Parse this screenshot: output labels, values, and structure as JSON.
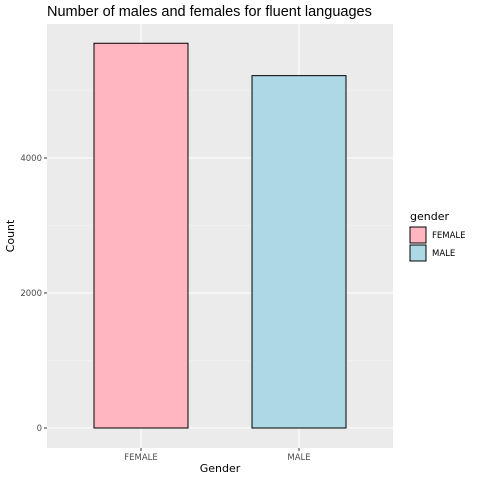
{
  "chart_data": {
    "type": "bar",
    "title": "Number of males and females for fluent languages",
    "xlabel": "Gender",
    "ylabel": "Count",
    "categories": [
      "FEMALE",
      "MALE"
    ],
    "values": [
      5700,
      5220
    ],
    "ylim": [
      0,
      6000
    ],
    "yticks": [
      0,
      2000,
      4000
    ],
    "grid": true,
    "legend": {
      "title": "gender",
      "placement": "right",
      "entries": [
        {
          "label": "FEMALE",
          "color": "#ffb6c1"
        },
        {
          "label": "MALE",
          "color": "#add8e6"
        }
      ]
    },
    "colors": [
      "#ffb6c1",
      "#add8e6"
    ],
    "panel_background": "#ebebeb"
  }
}
